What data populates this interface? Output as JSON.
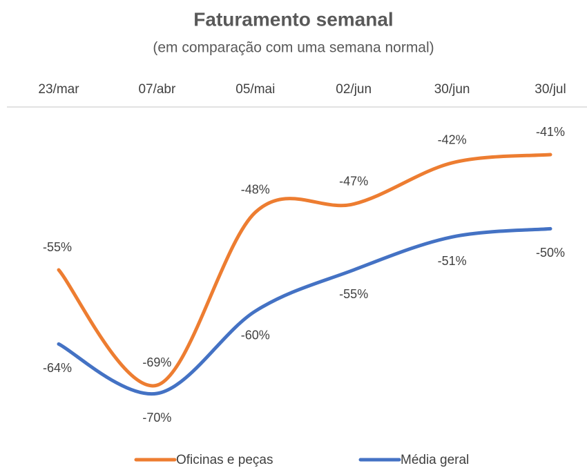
{
  "chart_data": {
    "type": "line",
    "title": "Faturamento semanal",
    "subtitle": "(em comparação com uma semana normal)",
    "categories": [
      "23/mar",
      "07/abr",
      "05/mai",
      "02/jun",
      "30/jun",
      "30/jul"
    ],
    "series": [
      {
        "name": "Oficinas e peças",
        "color": "#ed7d31",
        "values": [
          -55,
          -69,
          -48,
          -47,
          -42,
          -41
        ],
        "value_labels": [
          "-55%",
          "-69%",
          "-48%",
          "-47%",
          "-42%",
          "-41%"
        ]
      },
      {
        "name": "Média geral",
        "color": "#4472c4",
        "values": [
          -64,
          -70,
          -60,
          -55,
          -51,
          -50
        ],
        "value_labels": [
          "-64%",
          "-70%",
          "-60%",
          "-55%",
          "-51%",
          "-50%"
        ]
      }
    ],
    "smooth": true
  }
}
